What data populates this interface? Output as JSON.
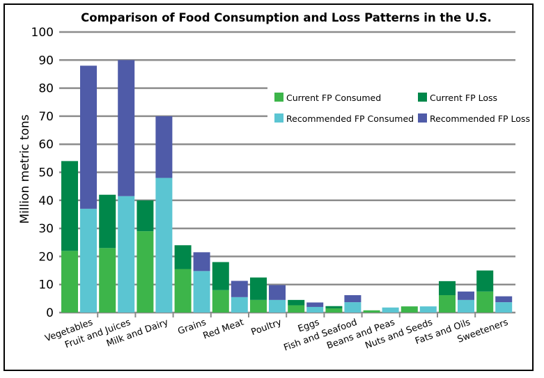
{
  "chart_data": {
    "type": "bar",
    "stacked": true,
    "title": "Comparison of Food Consumption and Loss Patterns in the U.S.",
    "ylabel": "Million metric tons",
    "xlabel": "",
    "ylim": [
      0,
      100
    ],
    "yticks": [
      0,
      10,
      20,
      30,
      40,
      50,
      60,
      70,
      80,
      90,
      100
    ],
    "grid": true,
    "legend_position": "top-right",
    "categories": [
      "Vegetables",
      "Fruit and Juices",
      "Milk and Dairy",
      "Grains",
      "Red Meat",
      "Poultry",
      "Eggs",
      "Fish and Seafood",
      "Beans and Peas",
      "Nuts and Seeds",
      "Fats and Oils",
      "Sweeteners"
    ],
    "series": [
      {
        "name": "Current FP Consumed",
        "color": "#3db54a",
        "group": "current",
        "values": [
          22,
          23,
          29,
          15.5,
          8,
          4.5,
          2.6,
          1.5,
          0.8,
          2.2,
          6.2,
          7.5
        ]
      },
      {
        "name": "Current FP Loss",
        "color": "#00874a",
        "group": "current",
        "values": [
          32,
          19,
          11,
          8.5,
          10,
          8,
          1.9,
          0.8,
          0,
          0,
          5,
          7.5
        ]
      },
      {
        "name": "Recommended FP Consumed",
        "color": "#5bc5d2",
        "group": "recommended",
        "values": [
          37,
          41.5,
          48,
          14.8,
          5.5,
          4.5,
          2,
          3.7,
          1.8,
          2.2,
          4.5,
          3.7
        ]
      },
      {
        "name": "Recommended FP Loss",
        "color": "#4f5ba8",
        "group": "recommended",
        "values": [
          51,
          48.5,
          22,
          6.7,
          5.8,
          5.3,
          1.6,
          2.5,
          0,
          0,
          3,
          2.1
        ]
      }
    ]
  }
}
